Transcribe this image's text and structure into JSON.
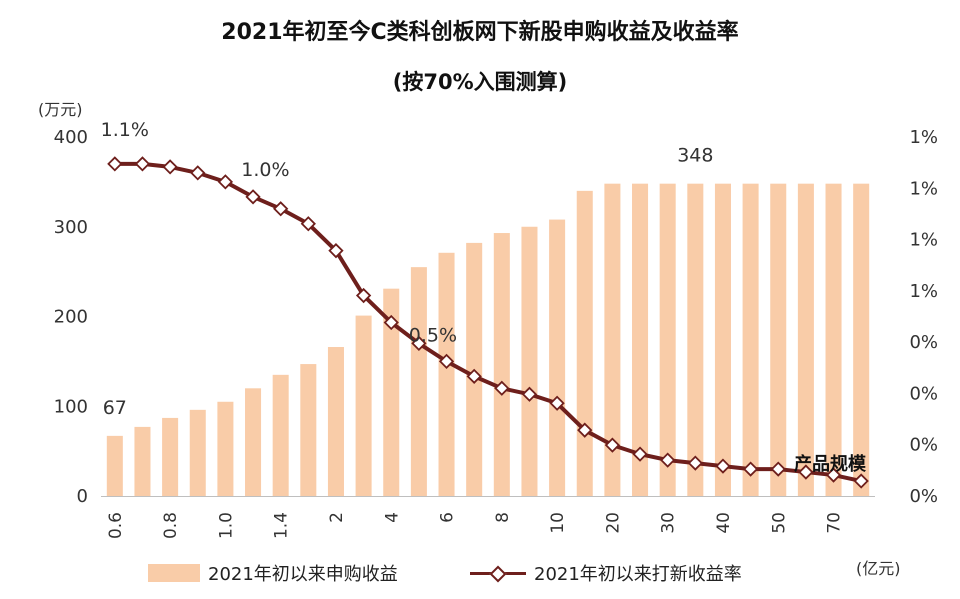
{
  "titles": {
    "main": "2021年初至今C类科创板网下新股申购收益及收益率",
    "sub": "(按70%入围测算)"
  },
  "units": {
    "y_left": "(万元)",
    "x": "(亿元)"
  },
  "legend": {
    "bar": "2021年初以来申购收益",
    "line": "2021年初以来打新收益率"
  },
  "annotations": {
    "product_scale": "产品规模"
  },
  "colors": {
    "bar": "#f9cca8",
    "line": "#6e1f1c",
    "marker_fill": "#ffffff",
    "annotation": "#111111"
  },
  "chart_data": {
    "type": "bar+line",
    "x_tick_labels": [
      "0.6",
      "0.8",
      "1.0",
      "1.4",
      "2",
      "4",
      "6",
      "8",
      "10",
      "20",
      "30",
      "40",
      "50",
      "70"
    ],
    "y_left": {
      "ticks": [
        "0",
        "100",
        "200",
        "300",
        "400"
      ],
      "range": [
        0,
        400
      ]
    },
    "y_right": {
      "ticks": [
        "0%",
        "0%",
        "0%",
        "0%",
        "1%",
        "1%",
        "1%",
        "1%"
      ],
      "range": [
        0,
        1.2
      ]
    },
    "series": [
      {
        "name": "2021年初以来申购收益",
        "kind": "bar",
        "axis": "left",
        "values": [
          67,
          77,
          87,
          96,
          105,
          120,
          135,
          147,
          166,
          201,
          231,
          255,
          271,
          282,
          293,
          300,
          308,
          340,
          348,
          348,
          348,
          348,
          348,
          348,
          348,
          348,
          348,
          348
        ]
      },
      {
        "name": "2021年初以来打新收益率",
        "kind": "line",
        "axis": "right",
        "values": [
          1.11,
          1.11,
          1.1,
          1.08,
          1.05,
          1.0,
          0.96,
          0.91,
          0.82,
          0.67,
          0.58,
          0.51,
          0.45,
          0.4,
          0.36,
          0.34,
          0.31,
          0.22,
          0.17,
          0.14,
          0.12,
          0.11,
          0.1,
          0.09,
          0.09,
          0.08,
          0.07,
          0.05
        ]
      }
    ],
    "data_labels": [
      {
        "series": 0,
        "index": 0,
        "text": "67"
      },
      {
        "series": 0,
        "index": 21,
        "text": "348"
      },
      {
        "series": 1,
        "index": 0,
        "text": "1.1%"
      },
      {
        "series": 1,
        "index": 4,
        "text": "1.0%"
      },
      {
        "series": 1,
        "index": 11,
        "text": "0.5%"
      }
    ]
  }
}
